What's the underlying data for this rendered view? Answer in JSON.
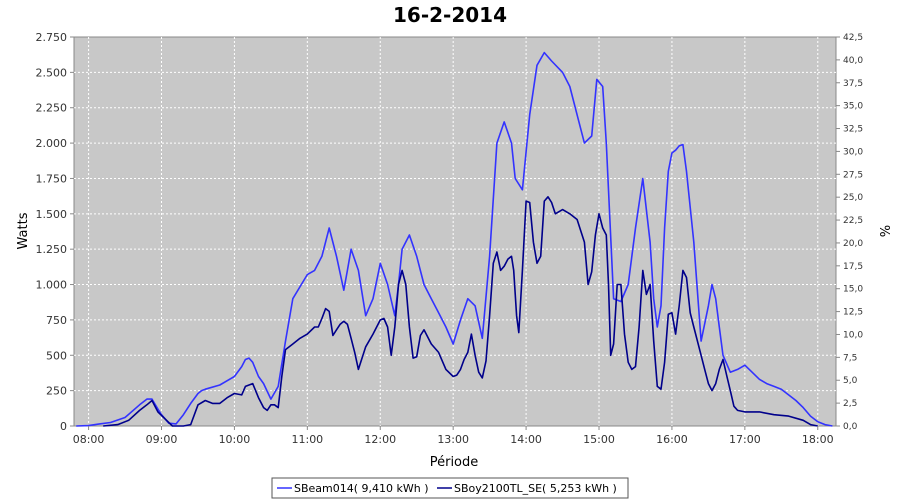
{
  "chart_data": {
    "type": "line",
    "title": "16-2-2014",
    "xlabel": "Période",
    "ylabel": "Watts",
    "ylabel_right": "%",
    "xlim": [
      7.8,
      18.25
    ],
    "ylim": [
      0,
      2750
    ],
    "ylim_right": [
      0,
      42.5
    ],
    "x_ticks": [
      8,
      9,
      10,
      11,
      12,
      13,
      14,
      15,
      16,
      17,
      18
    ],
    "x_tick_labels": [
      "08:00",
      "09:00",
      "10:00",
      "11:00",
      "12:00",
      "13:00",
      "14:00",
      "15:00",
      "16:00",
      "17:00",
      "18:00"
    ],
    "y_ticks": [
      0,
      250,
      500,
      750,
      1000,
      1250,
      1500,
      1750,
      2000,
      2250,
      2500,
      2750
    ],
    "y_tick_labels": [
      "0",
      "250",
      "500",
      "750",
      "1.000",
      "1.250",
      "1.500",
      "1.750",
      "2.000",
      "2.250",
      "2.500",
      "2.750"
    ],
    "y_right_ticks": [
      0,
      2.5,
      5,
      7.5,
      10,
      12.5,
      15,
      17.5,
      20,
      22.5,
      25,
      27.5,
      30,
      32.5,
      35,
      37.5,
      40,
      42.5
    ],
    "y_right_tick_labels": [
      "0,0",
      "2,5",
      "5,0",
      "7,5",
      "10,0",
      "12,5",
      "15,0",
      "17,5",
      "20,0",
      "22,5",
      "25,0",
      "27,5",
      "30,0",
      "32,5",
      "35,0",
      "37,5",
      "40,0",
      "42,5"
    ],
    "grid": true,
    "legend_position": "bottom",
    "series": [
      {
        "name": "SBeam014( 9,410 kWh )",
        "color": "#3333ff",
        "x": [
          7.83,
          8.0,
          8.15,
          8.3,
          8.5,
          8.7,
          8.8,
          8.87,
          8.95,
          9.0,
          9.1,
          9.2,
          9.3,
          9.4,
          9.5,
          9.55,
          9.6,
          9.8,
          10.0,
          10.1,
          10.15,
          10.2,
          10.25,
          10.33,
          10.4,
          10.5,
          10.6,
          10.7,
          10.8,
          11.0,
          11.1,
          11.2,
          11.3,
          11.4,
          11.5,
          11.55,
          11.6,
          11.7,
          11.8,
          11.9,
          12.0,
          12.1,
          12.2,
          12.25,
          12.3,
          12.4,
          12.5,
          12.6,
          12.7,
          12.8,
          12.9,
          13.0,
          13.1,
          13.2,
          13.3,
          13.4,
          13.5,
          13.6,
          13.7,
          13.8,
          13.85,
          13.95,
          14.05,
          14.15,
          14.25,
          14.35,
          14.5,
          14.6,
          14.7,
          14.8,
          14.9,
          14.97,
          15.05,
          15.1,
          15.2,
          15.3,
          15.4,
          15.5,
          15.6,
          15.7,
          15.75,
          15.8,
          15.85,
          15.9,
          15.95,
          16.0,
          16.05,
          16.1,
          16.15,
          16.2,
          16.3,
          16.4,
          16.5,
          16.55,
          16.6,
          16.65,
          16.7,
          16.8,
          16.9,
          17.0,
          17.1,
          17.2,
          17.3,
          17.4,
          17.5,
          17.6,
          17.7,
          17.8,
          17.9,
          18.0,
          18.1,
          18.2
        ],
        "values": [
          0,
          3,
          15,
          25,
          60,
          150,
          190,
          190,
          120,
          80,
          20,
          15,
          80,
          160,
          230,
          250,
          260,
          290,
          350,
          420,
          470,
          480,
          450,
          350,
          300,
          190,
          280,
          600,
          900,
          1070,
          1100,
          1200,
          1400,
          1200,
          960,
          1100,
          1250,
          1100,
          780,
          900,
          1150,
          1000,
          780,
          1000,
          1250,
          1350,
          1200,
          1000,
          900,
          800,
          700,
          580,
          750,
          900,
          850,
          620,
          1200,
          2000,
          2150,
          2000,
          1750,
          1670,
          2200,
          2550,
          2640,
          2580,
          2500,
          2400,
          2200,
          2000,
          2050,
          2450,
          2400,
          2000,
          900,
          880,
          1000,
          1400,
          1750,
          1300,
          900,
          700,
          850,
          1400,
          1800,
          1930,
          1950,
          1980,
          1990,
          1800,
          1300,
          600,
          850,
          1000,
          900,
          700,
          500,
          380,
          400,
          430,
          380,
          330,
          300,
          280,
          260,
          220,
          180,
          130,
          70,
          30,
          10,
          0
        ]
      },
      {
        "name": "SBoy2100TL_SE( 5,253 kWh )",
        "color": "#00008b",
        "x": [
          8.2,
          8.4,
          8.55,
          8.7,
          8.8,
          8.87,
          8.95,
          9.05,
          9.15,
          9.2,
          9.3,
          9.4,
          9.5,
          9.6,
          9.7,
          9.8,
          9.9,
          10.0,
          10.1,
          10.15,
          10.25,
          10.33,
          10.4,
          10.45,
          10.5,
          10.55,
          10.6,
          10.65,
          10.7,
          10.8,
          10.9,
          11.0,
          11.1,
          11.15,
          11.2,
          11.25,
          11.3,
          11.35,
          11.4,
          11.45,
          11.5,
          11.55,
          11.6,
          11.65,
          11.7,
          11.8,
          11.9,
          12.0,
          12.05,
          12.1,
          12.15,
          12.2,
          12.25,
          12.3,
          12.35,
          12.4,
          12.45,
          12.5,
          12.55,
          12.6,
          12.7,
          12.8,
          12.9,
          13.0,
          13.05,
          13.1,
          13.15,
          13.2,
          13.25,
          13.3,
          13.35,
          13.4,
          13.45,
          13.5,
          13.55,
          13.6,
          13.65,
          13.7,
          13.75,
          13.8,
          13.83,
          13.87,
          13.9,
          13.95,
          14.0,
          14.05,
          14.1,
          14.15,
          14.2,
          14.25,
          14.3,
          14.35,
          14.4,
          14.5,
          14.6,
          14.7,
          14.8,
          14.85,
          14.9,
          14.95,
          15.0,
          15.05,
          15.1,
          15.13,
          15.16,
          15.2,
          15.25,
          15.3,
          15.35,
          15.4,
          15.45,
          15.5,
          15.55,
          15.6,
          15.65,
          15.7,
          15.75,
          15.8,
          15.85,
          15.9,
          15.95,
          16.0,
          16.05,
          16.1,
          16.15,
          16.2,
          16.25,
          16.3,
          16.4,
          16.45,
          16.5,
          16.55,
          16.6,
          16.65,
          16.7,
          16.75,
          16.8,
          16.85,
          16.9,
          17.0,
          17.2,
          17.4,
          17.6,
          17.8,
          17.9,
          18.0
        ],
        "values": [
          0,
          10,
          40,
          110,
          150,
          180,
          100,
          50,
          0,
          0,
          0,
          10,
          150,
          180,
          160,
          160,
          200,
          230,
          220,
          280,
          300,
          200,
          130,
          110,
          150,
          150,
          130,
          350,
          540,
          580,
          620,
          650,
          700,
          700,
          760,
          830,
          810,
          640,
          680,
          720,
          740,
          720,
          620,
          520,
          400,
          560,
          650,
          750,
          760,
          700,
          500,
          700,
          1000,
          1100,
          1000,
          700,
          480,
          490,
          640,
          680,
          580,
          520,
          400,
          350,
          360,
          400,
          470,
          520,
          650,
          500,
          380,
          340,
          460,
          780,
          1150,
          1230,
          1100,
          1130,
          1180,
          1200,
          1100,
          780,
          660,
          1100,
          1590,
          1580,
          1300,
          1150,
          1200,
          1590,
          1620,
          1580,
          1500,
          1530,
          1500,
          1460,
          1300,
          1000,
          1090,
          1350,
          1500,
          1400,
          1350,
          1000,
          500,
          580,
          1000,
          1000,
          650,
          450,
          400,
          420,
          700,
          1100,
          930,
          1000,
          600,
          280,
          260,
          450,
          790,
          800,
          650,
          850,
          1100,
          1050,
          800,
          700,
          500,
          400,
          300,
          250,
          300,
          400,
          470,
          360,
          250,
          140,
          110,
          100,
          100,
          80,
          70,
          40,
          10,
          0
        ]
      }
    ]
  }
}
